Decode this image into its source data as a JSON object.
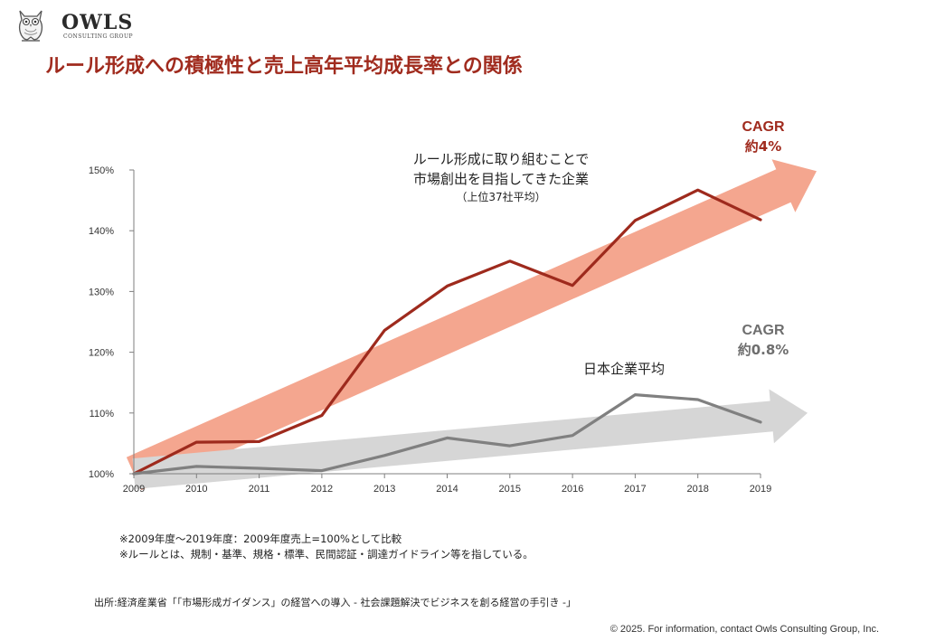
{
  "header": {
    "logo_name": "OWLS",
    "logo_sub": "CONSULTING GROUP",
    "title": "ルール形成への積極性と売上高年平均成長率との関係"
  },
  "annotations": {
    "cagr_top_label": "CAGR",
    "cagr_top_value": "約4%",
    "cagr_bottom_label": "CAGR",
    "cagr_bottom_value": "約0.8%",
    "rule_series_line1": "ルール形成に取り組むことで",
    "rule_series_line2": "市場創出を目指してきた企業",
    "rule_series_line3": "（上位37社平均）",
    "avg_series_label": "日本企業平均"
  },
  "notes": {
    "line1": "※2009年度～2019年度：2009年度売上=100%として比較",
    "line2": "※ルールとは、規制・基準、規格・標準、民間認証・調達ガイドライン等を指している。"
  },
  "source": "出所:経済産業省「「市場形成ガイダンス」の経営への導入 - 社会課題解決でビジネスを創る経営の手引き -」",
  "copyright": "© 2025. For information, contact Owls Consulting Group, Inc.",
  "colors": {
    "title": "#a02b1e",
    "rule_line": "#9e2a1d",
    "rule_arrow": "#f4a68f",
    "avg_line": "#808080",
    "avg_arrow": "#d6d6d6"
  },
  "chart_data": {
    "type": "line",
    "categories": [
      "2009",
      "2010",
      "2011",
      "2012",
      "2013",
      "2014",
      "2015",
      "2016",
      "2017",
      "2018",
      "2019"
    ],
    "y_ticks": [
      "100%",
      "110%",
      "120%",
      "130%",
      "140%",
      "150%"
    ],
    "ylim": [
      100,
      150
    ],
    "series": [
      {
        "key": "rule",
        "values": [
          100,
          105.2,
          105.3,
          109.6,
          123.6,
          130.9,
          135.0,
          131.0,
          141.7,
          146.7,
          141.8
        ]
      },
      {
        "key": "avg",
        "values": [
          100,
          101.2,
          100.9,
          100.5,
          103.0,
          105.9,
          104.6,
          106.3,
          113.0,
          112.2,
          108.5
        ]
      }
    ],
    "trend_arrows": [
      {
        "key": "rule_trend",
        "from_value": 100,
        "to_value": 149.8
      },
      {
        "key": "avg_trend",
        "from_value": 100,
        "to_value": 110.0
      }
    ]
  }
}
